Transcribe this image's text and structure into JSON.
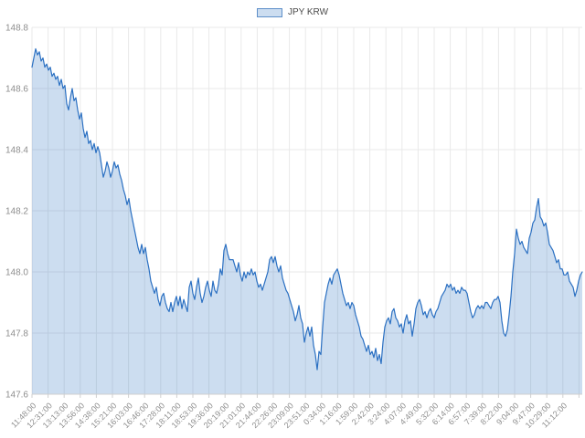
{
  "chart_data": {
    "type": "area",
    "title": "",
    "legend": {
      "position": "top-center"
    },
    "xlabel": "",
    "ylabel": "",
    "ylim": [
      147.6,
      148.8
    ],
    "y_ticks": [
      148.8,
      148.6,
      148.4,
      148.2,
      148.0,
      147.8,
      147.6
    ],
    "grid": true,
    "x_label_rotation_deg": -45,
    "x_tick_labels": [
      "11:48:00",
      "12:31:00",
      "13:13:00",
      "13:56:00",
      "14:38:00",
      "15:21:00",
      "16:03:00",
      "16:46:00",
      "17:28:00",
      "18:11:00",
      "18:53:00",
      "19:36:00",
      "20:19:00",
      "21:01:00",
      "21:44:00",
      "22:26:00",
      "23:09:00",
      "23:51:00",
      "0:34:00",
      "1:16:00",
      "1:59:00",
      "2:42:00",
      "3:24:00",
      "4:07:00",
      "4:49:00",
      "5:32:00",
      "6:14:00",
      "6:57:00",
      "7:39:00",
      "8:22:00",
      "9:04:00",
      "9:47:00",
      "10:29:00",
      "11:12:00"
    ],
    "series": [
      {
        "name": "JPY KRW",
        "values": [
          148.67,
          148.7,
          148.73,
          148.71,
          148.72,
          148.69,
          148.7,
          148.67,
          148.68,
          148.66,
          148.67,
          148.64,
          148.65,
          148.63,
          148.64,
          148.61,
          148.63,
          148.6,
          148.61,
          148.55,
          148.53,
          148.57,
          148.6,
          148.56,
          148.57,
          148.53,
          148.5,
          148.52,
          148.47,
          148.44,
          148.46,
          148.42,
          148.43,
          148.4,
          148.42,
          148.39,
          148.41,
          148.39,
          148.35,
          148.31,
          148.33,
          148.36,
          148.34,
          148.31,
          148.33,
          148.36,
          148.34,
          148.35,
          148.32,
          148.3,
          148.27,
          148.25,
          148.22,
          148.24,
          148.2,
          148.17,
          148.14,
          148.11,
          148.08,
          148.06,
          148.09,
          148.06,
          148.08,
          148.04,
          148.01,
          147.97,
          147.95,
          147.93,
          147.95,
          147.91,
          147.89,
          147.92,
          147.93,
          147.9,
          147.88,
          147.87,
          147.9,
          147.87,
          147.9,
          147.92,
          147.89,
          147.92,
          147.88,
          147.91,
          147.89,
          147.87,
          147.95,
          147.97,
          147.93,
          147.91,
          147.95,
          147.98,
          147.93,
          147.9,
          147.92,
          147.95,
          147.97,
          147.94,
          147.92,
          147.97,
          147.94,
          147.93,
          147.96,
          148.01,
          147.99,
          148.07,
          148.09,
          148.06,
          148.04,
          148.04,
          148.04,
          148.02,
          148.0,
          148.03,
          147.99,
          147.97,
          148.0,
          147.98,
          148.0,
          147.99,
          148.01,
          147.99,
          148.0,
          147.97,
          147.95,
          147.96,
          147.94,
          147.96,
          147.98,
          148.0,
          148.04,
          148.05,
          148.03,
          148.05,
          148.02,
          148.0,
          148.02,
          147.98,
          147.96,
          147.94,
          147.93,
          147.91,
          147.89,
          147.87,
          147.84,
          147.86,
          147.89,
          147.85,
          147.83,
          147.77,
          147.8,
          147.82,
          147.79,
          147.82,
          147.76,
          147.73,
          147.68,
          147.74,
          147.73,
          147.82,
          147.9,
          147.93,
          147.96,
          147.98,
          147.96,
          147.99,
          148.0,
          148.01,
          147.99,
          147.96,
          147.93,
          147.91,
          147.89,
          147.9,
          147.88,
          147.9,
          147.89,
          147.86,
          147.84,
          147.82,
          147.79,
          147.78,
          147.76,
          147.74,
          147.76,
          147.73,
          147.74,
          147.72,
          147.75,
          147.71,
          147.73,
          147.7,
          147.77,
          147.82,
          147.84,
          147.85,
          147.83,
          147.87,
          147.88,
          147.85,
          147.84,
          147.82,
          147.83,
          147.8,
          147.84,
          147.86,
          147.83,
          147.84,
          147.79,
          147.83,
          147.88,
          147.9,
          147.91,
          147.89,
          147.86,
          147.87,
          147.85,
          147.87,
          147.88,
          147.86,
          147.85,
          147.87,
          147.88,
          147.9,
          147.92,
          147.93,
          147.94,
          147.96,
          147.95,
          147.96,
          147.94,
          147.95,
          147.93,
          147.94,
          147.93,
          147.95,
          147.94,
          147.94,
          147.93,
          147.9,
          147.87,
          147.85,
          147.86,
          147.88,
          147.89,
          147.88,
          147.89,
          147.88,
          147.9,
          147.9,
          147.89,
          147.88,
          147.9,
          147.91,
          147.91,
          147.92,
          147.9,
          147.84,
          147.8,
          147.79,
          147.81,
          147.86,
          147.92,
          148.0,
          148.06,
          148.14,
          148.11,
          148.09,
          148.1,
          148.08,
          148.07,
          148.06,
          148.11,
          148.13,
          148.16,
          148.17,
          148.21,
          148.24,
          148.18,
          148.17,
          148.15,
          148.16,
          148.13,
          148.09,
          148.08,
          148.07,
          148.05,
          148.03,
          148.04,
          148.01,
          148.01,
          147.99,
          147.99,
          148.0,
          147.97,
          147.96,
          147.95,
          147.92,
          147.94,
          147.97,
          147.99,
          148.0
        ]
      }
    ],
    "colors": {
      "line": "#2b70c2",
      "fill": "rgba(43,112,194,0.24)",
      "grid": "#e9e9e9",
      "axis": "#cfcfcf",
      "tick_label": "#8e8e8e",
      "legend_text": "#4a4a4a",
      "legend_swatch_border": "#5e8fc9"
    }
  }
}
